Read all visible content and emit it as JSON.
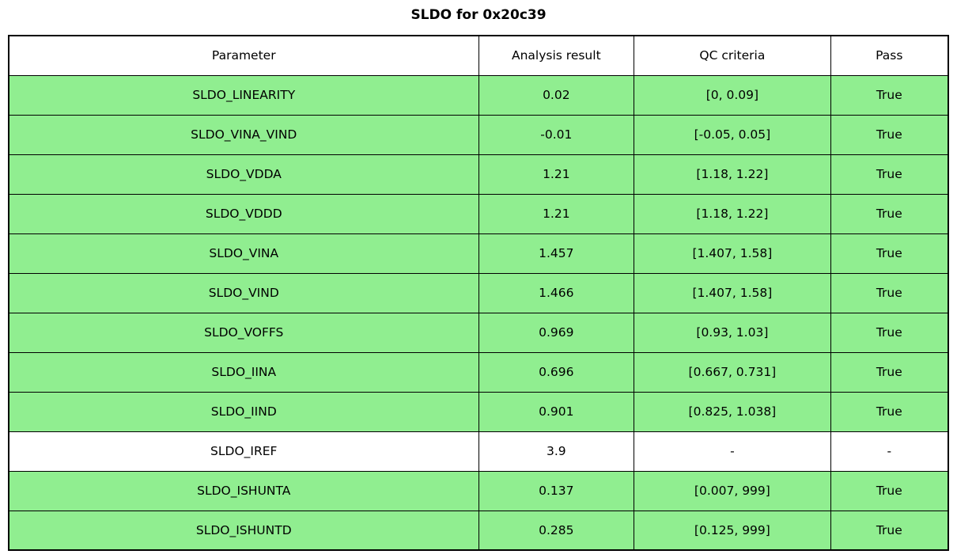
{
  "title": "SLDO for 0x20c39",
  "colors": {
    "pass_row_bg": "#90EE90",
    "neutral_row_bg": "#FFFFFF",
    "border": "#000000",
    "text": "#000000",
    "background": "#FFFFFF"
  },
  "chart_data": {
    "type": "table",
    "title": "SLDO for 0x20c39",
    "columns": [
      "Parameter",
      "Analysis result",
      "QC criteria",
      "Pass"
    ],
    "rows": [
      {
        "cells": [
          "SLDO_LINEARITY",
          "0.02",
          "[0, 0.09]",
          "True"
        ],
        "bg": "#90EE90"
      },
      {
        "cells": [
          "SLDO_VINA_VIND",
          "-0.01",
          "[-0.05, 0.05]",
          "True"
        ],
        "bg": "#90EE90"
      },
      {
        "cells": [
          "SLDO_VDDA",
          "1.21",
          "[1.18, 1.22]",
          "True"
        ],
        "bg": "#90EE90"
      },
      {
        "cells": [
          "SLDO_VDDD",
          "1.21",
          "[1.18, 1.22]",
          "True"
        ],
        "bg": "#90EE90"
      },
      {
        "cells": [
          "SLDO_VINA",
          "1.457",
          "[1.407, 1.58]",
          "True"
        ],
        "bg": "#90EE90"
      },
      {
        "cells": [
          "SLDO_VIND",
          "1.466",
          "[1.407, 1.58]",
          "True"
        ],
        "bg": "#90EE90"
      },
      {
        "cells": [
          "SLDO_VOFFS",
          "0.969",
          "[0.93, 1.03]",
          "True"
        ],
        "bg": "#90EE90"
      },
      {
        "cells": [
          "SLDO_IINA",
          "0.696",
          "[0.667, 0.731]",
          "True"
        ],
        "bg": "#90EE90"
      },
      {
        "cells": [
          "SLDO_IIND",
          "0.901",
          "[0.825, 1.038]",
          "True"
        ],
        "bg": "#90EE90"
      },
      {
        "cells": [
          "SLDO_IREF",
          "3.9",
          "-",
          "-"
        ],
        "bg": "#FFFFFF"
      },
      {
        "cells": [
          "SLDO_ISHUNTA",
          "0.137",
          "[0.007, 999]",
          "True"
        ],
        "bg": "#90EE90"
      },
      {
        "cells": [
          "SLDO_ISHUNTD",
          "0.285",
          "[0.125, 999]",
          "True"
        ],
        "bg": "#90EE90"
      }
    ]
  }
}
